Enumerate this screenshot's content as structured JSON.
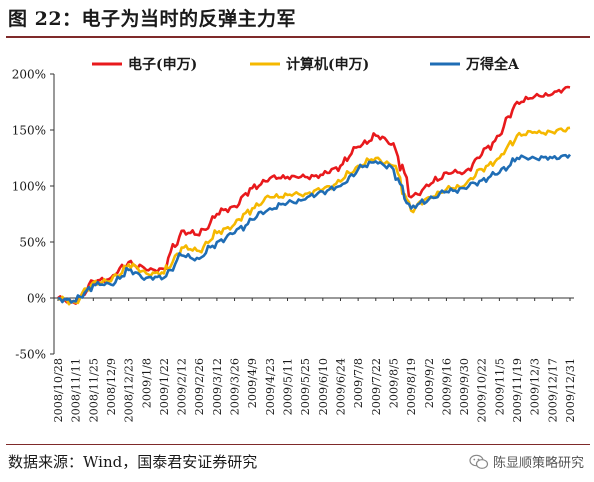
{
  "figure": {
    "title": "图 22：电子为当时的反弹主力军",
    "source": "数据来源：Wind，国泰君安证券研究",
    "watermark": "陈显顺策略研究",
    "watermark_icon": "wechat-icon"
  },
  "chart_data": {
    "type": "line",
    "ylim": [
      -50,
      200
    ],
    "yticks": [
      -50,
      0,
      50,
      100,
      150,
      200
    ],
    "ytick_labels": [
      "-50%",
      "0%",
      "50%",
      "100%",
      "150%",
      "200%"
    ],
    "xtick_labels": [
      "2008/10/28",
      "2008/11/11",
      "2008/11/25",
      "2008/12/9",
      "2008/12/23",
      "2009/1/8",
      "2009/1/22",
      "2009/2/12",
      "2009/2/26",
      "2009/3/12",
      "2009/3/26",
      "2009/4/9",
      "2009/4/23",
      "2009/5/11",
      "2009/5/25",
      "2009/6/10",
      "2009/6/24",
      "2009/7/8",
      "2009/7/22",
      "2009/8/5",
      "2009/8/19",
      "2009/9/2",
      "2009/9/16",
      "2009/9/30",
      "2009/10/22",
      "2009/11/5",
      "2009/11/19",
      "2009/12/3",
      "2009/12/17",
      "2009/12/31"
    ],
    "legend_position": "top",
    "grid": false,
    "series": [
      {
        "name": "电子(申万)",
        "color": "#e8191c",
        "values": [
          0,
          -5,
          15,
          18,
          32,
          25,
          26,
          60,
          56,
          75,
          82,
          98,
          107,
          108,
          108,
          110,
          118,
          135,
          145,
          138,
          90,
          100,
          112,
          112,
          128,
          145,
          175,
          180,
          182,
          188
        ]
      },
      {
        "name": "计算机(申万)",
        "color": "#f5b800",
        "values": [
          0,
          -4,
          14,
          15,
          30,
          22,
          22,
          45,
          42,
          58,
          66,
          80,
          90,
          92,
          93,
          97,
          104,
          118,
          125,
          118,
          78,
          90,
          97,
          100,
          115,
          125,
          145,
          148,
          148,
          152
        ]
      },
      {
        "name": "万得全A",
        "color": "#1f6db5",
        "values": [
          0,
          -3,
          12,
          12,
          25,
          18,
          18,
          38,
          35,
          50,
          58,
          70,
          80,
          85,
          88,
          95,
          100,
          115,
          122,
          115,
          80,
          88,
          95,
          98,
          105,
          112,
          125,
          125,
          125,
          128
        ]
      }
    ]
  }
}
